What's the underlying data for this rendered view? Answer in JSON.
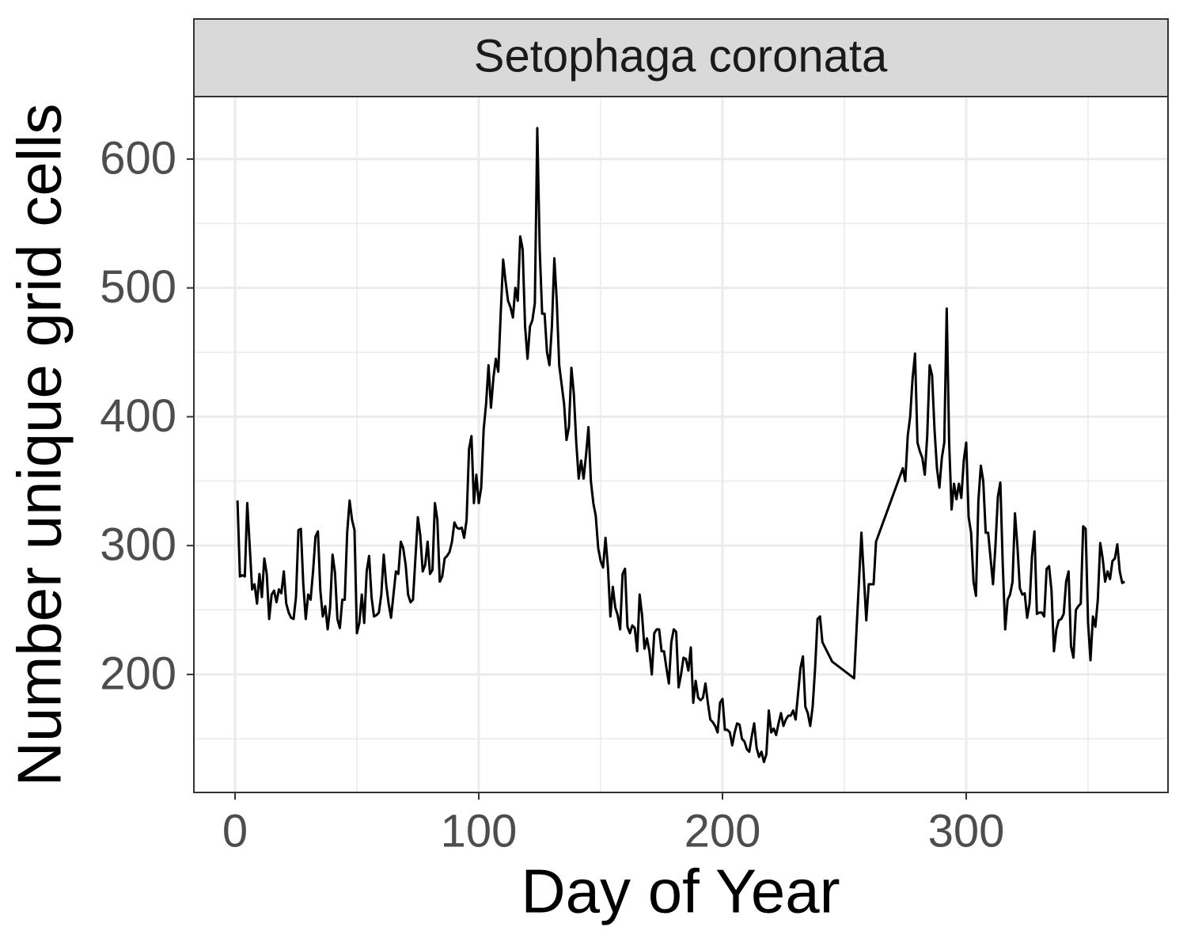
{
  "chart_data": {
    "type": "line",
    "facet": "Setophaga coronata",
    "xlabel": "Day of Year",
    "ylabel": "Number unique grid cells",
    "color": "#000000",
    "grid": true,
    "xlim": [
      -16.9,
      382.8
    ],
    "ylim": [
      108.4,
      648.5
    ],
    "xticks": [
      0,
      100,
      200,
      300
    ],
    "yticks": [
      200,
      300,
      400,
      500,
      600
    ],
    "minor_xticks": [
      50,
      150,
      250,
      350
    ],
    "minor_yticks": [
      150,
      250,
      350,
      450,
      550
    ],
    "x": [
      1,
      2,
      3,
      4,
      5,
      6,
      7,
      8,
      9,
      10,
      11,
      12,
      13,
      14,
      15,
      16,
      17,
      18,
      19,
      20,
      21,
      22,
      23,
      24,
      25,
      26,
      27,
      28,
      29,
      30,
      31,
      32,
      33,
      34,
      35,
      36,
      37,
      38,
      39,
      40,
      41,
      42,
      43,
      44,
      45,
      46,
      47,
      48,
      49,
      50,
      51,
      52,
      53,
      54,
      55,
      56,
      57,
      58,
      59,
      60,
      61,
      62,
      63,
      64,
      65,
      66,
      67,
      68,
      69,
      70,
      71,
      72,
      73,
      74,
      75,
      76,
      77,
      78,
      79,
      80,
      81,
      82,
      83,
      84,
      85,
      86,
      87,
      88,
      89,
      90,
      91,
      92,
      93,
      94,
      95,
      96,
      97,
      98,
      99,
      100,
      101,
      102,
      103,
      104,
      105,
      106,
      107,
      108,
      109,
      110,
      111,
      112,
      113,
      114,
      115,
      116,
      117,
      118,
      119,
      120,
      121,
      122,
      123,
      124,
      125,
      126,
      127,
      128,
      129,
      130,
      131,
      132,
      133,
      134,
      135,
      136,
      137,
      138,
      139,
      140,
      141,
      142,
      143,
      144,
      145,
      146,
      147,
      148,
      149,
      150,
      151,
      152,
      153,
      154,
      155,
      156,
      157,
      158,
      159,
      160,
      161,
      162,
      163,
      164,
      165,
      166,
      167,
      168,
      169,
      170,
      171,
      172,
      173,
      174,
      175,
      176,
      177,
      178,
      179,
      180,
      181,
      182,
      183,
      184,
      185,
      186,
      187,
      188,
      189,
      190,
      191,
      192,
      193,
      194,
      195,
      196,
      197,
      198,
      199,
      200,
      201,
      202,
      203,
      204,
      205,
      206,
      207,
      208,
      209,
      210,
      211,
      212,
      213,
      214,
      215,
      216,
      217,
      218,
      219,
      220,
      221,
      222,
      223,
      224,
      225,
      226,
      227,
      228,
      229,
      230,
      231,
      232,
      233,
      234,
      235,
      236,
      237,
      238,
      239,
      240,
      241,
      245,
      254,
      257,
      259,
      260,
      262,
      263,
      274,
      275,
      276,
      277,
      278,
      279,
      280,
      281,
      282,
      283,
      284,
      285,
      286,
      287,
      288,
      289,
      290,
      291,
      292,
      293,
      294,
      295,
      296,
      297,
      298,
      299,
      300,
      301,
      302,
      303,
      304,
      305,
      306,
      307,
      308,
      309,
      310,
      311,
      312,
      313,
      314,
      315,
      316,
      317,
      318,
      319,
      320,
      321,
      322,
      323,
      324,
      325,
      326,
      327,
      328,
      329,
      330,
      331,
      332,
      333,
      334,
      335,
      336,
      337,
      338,
      339,
      340,
      341,
      342,
      343,
      344,
      345,
      346,
      347,
      348,
      349,
      350,
      351,
      352,
      353,
      354,
      355,
      356,
      357,
      358,
      359,
      360,
      361,
      362,
      363,
      364,
      365
    ],
    "values": [
      335,
      276,
      277,
      276,
      333,
      300,
      266,
      270,
      255,
      278,
      260,
      290,
      278,
      243,
      262,
      265,
      256,
      266,
      263,
      280,
      255,
      248,
      244,
      243,
      260,
      312,
      313,
      270,
      243,
      262,
      258,
      280,
      307,
      311,
      265,
      245,
      253,
      235,
      252,
      293,
      279,
      243,
      236,
      258,
      258,
      310,
      335,
      320,
      312,
      232,
      240,
      262,
      240,
      280,
      292,
      260,
      245,
      246,
      248,
      262,
      293,
      270,
      255,
      244,
      262,
      280,
      278,
      303,
      298,
      285,
      262,
      256,
      258,
      290,
      322,
      308,
      280,
      285,
      303,
      278,
      281,
      333,
      320,
      272,
      276,
      290,
      292,
      295,
      303,
      318,
      314,
      313,
      314,
      306,
      320,
      375,
      385,
      333,
      355,
      333,
      345,
      390,
      410,
      440,
      407,
      430,
      445,
      435,
      480,
      522,
      505,
      490,
      485,
      477,
      500,
      490,
      540,
      530,
      470,
      445,
      470,
      475,
      488,
      624,
      530,
      480,
      480,
      450,
      440,
      470,
      523,
      490,
      440,
      425,
      410,
      382,
      392,
      438,
      418,
      380,
      352,
      366,
      352,
      370,
      392,
      350,
      333,
      323,
      298,
      288,
      283,
      306,
      283,
      245,
      268,
      252,
      246,
      235,
      278,
      282,
      237,
      232,
      238,
      236,
      218,
      262,
      246,
      220,
      228,
      218,
      200,
      232,
      235,
      235,
      218,
      218,
      205,
      193,
      225,
      235,
      233,
      190,
      200,
      213,
      212,
      203,
      221,
      178,
      195,
      182,
      180,
      182,
      193,
      178,
      165,
      163,
      160,
      155,
      178,
      181,
      157,
      157,
      155,
      145,
      155,
      162,
      161,
      150,
      148,
      142,
      140,
      152,
      162,
      143,
      136,
      140,
      132,
      138,
      172,
      155,
      158,
      153,
      162,
      170,
      160,
      165,
      168,
      168,
      172,
      165,
      185,
      205,
      214,
      175,
      170,
      160,
      175,
      205,
      243,
      245,
      225,
      210,
      197,
      310,
      242,
      270,
      270,
      303,
      360,
      350,
      385,
      400,
      430,
      449,
      380,
      373,
      368,
      355,
      385,
      440,
      432,
      390,
      360,
      345,
      368,
      380,
      484,
      380,
      328,
      348,
      336,
      348,
      337,
      366,
      380,
      322,
      310,
      272,
      261,
      335,
      362,
      350,
      310,
      310,
      290,
      270,
      300,
      338,
      349,
      285,
      235,
      258,
      262,
      272,
      325,
      300,
      267,
      262,
      263,
      244,
      255,
      292,
      311,
      247,
      248,
      248,
      245,
      282,
      284,
      265,
      218,
      235,
      242,
      243,
      247,
      272,
      280,
      222,
      213,
      250,
      253,
      255,
      315,
      313,
      240,
      211,
      245,
      237,
      258,
      302,
      290,
      272,
      280,
      274,
      288,
      290,
      301,
      280,
      271,
      272
    ]
  }
}
